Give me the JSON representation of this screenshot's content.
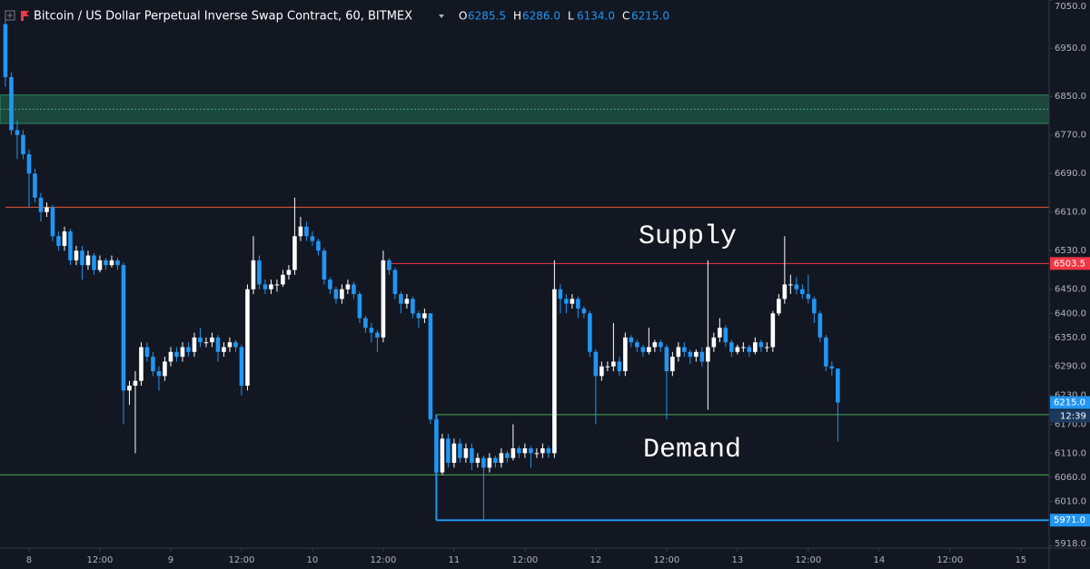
{
  "chart_data": {
    "type": "candlestick",
    "title": "Bitcoin / US Dollar Perpetual Inverse Swap Contract, 60, BITMEX",
    "ohlc_legend": [
      {
        "name": "O",
        "value": 6285.5,
        "label": "6285.5"
      },
      {
        "name": "H",
        "value": 6286.0,
        "label": "6286.0"
      },
      {
        "name": "L",
        "value": 6134.0,
        "label": "6134.0"
      },
      {
        "name": "C",
        "value": 6215.0,
        "label": "6215.0"
      }
    ],
    "up_color": "#ffffff",
    "down_color": "#2196f3",
    "x": [
      -4,
      -3,
      -2,
      -1,
      0,
      1,
      2,
      3,
      4,
      5,
      6,
      7,
      8,
      9,
      10,
      11,
      12,
      13,
      14,
      15,
      16,
      17,
      18,
      19,
      20,
      21,
      22,
      23,
      24,
      25,
      26,
      27,
      28,
      29,
      30,
      31,
      32,
      33,
      34,
      35,
      36,
      37,
      38,
      39,
      40,
      41,
      42,
      43,
      44,
      45,
      46,
      47,
      48,
      49,
      50,
      51,
      52,
      53,
      54,
      55,
      56,
      57,
      58,
      59,
      60,
      61,
      62,
      63,
      64,
      65,
      66,
      67,
      68,
      69,
      70,
      71,
      72,
      73,
      74,
      75,
      76,
      77,
      78,
      79,
      80,
      81,
      82,
      83,
      84,
      85,
      86,
      87,
      88,
      89,
      90,
      91,
      92,
      93,
      94,
      95,
      96,
      97,
      98,
      99,
      100,
      101,
      102,
      103,
      104,
      105,
      106,
      107,
      108,
      109,
      110,
      111,
      112,
      113,
      114,
      115,
      116,
      117,
      118,
      119,
      120,
      121,
      122,
      123,
      124,
      125,
      126,
      127,
      128,
      129,
      130,
      131,
      132,
      133,
      134,
      135,
      136,
      137
    ],
    "open": [
      7000,
      6890,
      6780,
      6770,
      6730,
      6690,
      6640,
      6610,
      6620,
      6560,
      6540,
      6570,
      6510,
      6530,
      6500,
      6520,
      6490,
      6510,
      6500,
      6510,
      6500,
      6240,
      6250,
      6260,
      6330,
      6310,
      6280,
      6270,
      6300,
      6320,
      6310,
      6330,
      6320,
      6350,
      6340,
      6340,
      6350,
      6320,
      6330,
      6340,
      6330,
      6250,
      6450,
      6510,
      6460,
      6450,
      6460,
      6460,
      6480,
      6490,
      6560,
      6580,
      6560,
      6550,
      6530,
      6470,
      6450,
      6430,
      6450,
      6460,
      6440,
      6390,
      6370,
      6360,
      6350,
      6510,
      6490,
      6440,
      6420,
      6430,
      6400,
      6390,
      6400,
      6180,
      6070,
      6140,
      6090,
      6130,
      6100,
      6120,
      6090,
      6100,
      6080,
      6100,
      6090,
      6110,
      6100,
      6120,
      6110,
      6120,
      6110,
      6110,
      6120,
      6110,
      6450,
      6430,
      6420,
      6430,
      6410,
      6400,
      6320,
      6270,
      6290,
      6290,
      6300,
      6280,
      6350,
      6340,
      6330,
      6320,
      6330,
      6340,
      6330,
      6280,
      6310,
      6330,
      6320,
      6310,
      6320,
      6300,
      6330,
      6350,
      6370,
      6340,
      6320,
      6330,
      6330,
      6320,
      6340,
      6330,
      6330,
      6400,
      6430,
      6460,
      6460,
      6450,
      6440,
      6430,
      6400,
      6350,
      6290,
      6285.5
    ],
    "high": [
      7020,
      6900,
      6800,
      6780,
      6740,
      6700,
      6650,
      6630,
      6625,
      6570,
      6580,
      6575,
      6540,
      6540,
      6530,
      6525,
      6520,
      6515,
      6520,
      6515,
      6505,
      6260,
      6280,
      6340,
      6340,
      6320,
      6290,
      6310,
      6330,
      6330,
      6340,
      6340,
      6360,
      6370,
      6350,
      6360,
      6355,
      6340,
      6350,
      6345,
      6335,
      6460,
      6560,
      6520,
      6470,
      6470,
      6470,
      6490,
      6500,
      6640,
      6600,
      6590,
      6570,
      6555,
      6535,
      6475,
      6455,
      6460,
      6470,
      6465,
      6445,
      6395,
      6380,
      6365,
      6530,
      6515,
      6495,
      6445,
      6440,
      6435,
      6405,
      6410,
      6400,
      6190,
      6150,
      6150,
      6140,
      6140,
      6130,
      6130,
      6110,
      6105,
      6110,
      6105,
      6120,
      6115,
      6170,
      6125,
      6130,
      6125,
      6120,
      6130,
      6125,
      6510,
      6460,
      6440,
      6440,
      6435,
      6415,
      6405,
      6325,
      6300,
      6300,
      6380,
      6310,
      6360,
      6355,
      6345,
      6335,
      6370,
      6345,
      6345,
      6335,
      6320,
      6340,
      6340,
      6325,
      6325,
      6330,
      6510,
      6360,
      6390,
      6375,
      6345,
      6335,
      6340,
      6335,
      6350,
      6345,
      6340,
      6405,
      6440,
      6560,
      6480,
      6475,
      6460,
      6480,
      6435,
      6405,
      6355,
      6300,
      6286
    ],
    "low": [
      6870,
      6770,
      6720,
      6720,
      6620,
      6630,
      6590,
      6600,
      6550,
      6530,
      6530,
      6500,
      6500,
      6470,
      6490,
      6480,
      6485,
      6490,
      6495,
      6490,
      6170,
      6210,
      6110,
      6250,
      6300,
      6270,
      6240,
      6260,
      6290,
      6300,
      6300,
      6310,
      6310,
      6330,
      6330,
      6330,
      6300,
      6310,
      6320,
      6320,
      6230,
      6240,
      6440,
      6450,
      6440,
      6440,
      6445,
      6455,
      6470,
      6480,
      6550,
      6550,
      6540,
      6520,
      6460,
      6440,
      6420,
      6420,
      6440,
      6430,
      6380,
      6360,
      6340,
      6320,
      6340,
      6480,
      6430,
      6400,
      6410,
      6390,
      6370,
      6380,
      6170,
      6060,
      6065,
      6080,
      6080,
      6090,
      6090,
      6075,
      6080,
      5971,
      6070,
      6080,
      6080,
      6090,
      6095,
      6100,
      6100,
      6080,
      6100,
      6100,
      6100,
      6100,
      6400,
      6400,
      6410,
      6390,
      6390,
      6310,
      6170,
      6260,
      6280,
      6280,
      6270,
      6270,
      6330,
      6320,
      6310,
      6315,
      6320,
      6320,
      6180,
      6270,
      6300,
      6310,
      6295,
      6300,
      6290,
      6200,
      6320,
      6340,
      6330,
      6310,
      6315,
      6320,
      6310,
      6315,
      6320,
      6320,
      6320,
      6395,
      6420,
      6440,
      6440,
      6430,
      6420,
      6380,
      6340,
      6280,
      6270,
      6134
    ],
    "close": [
      6890,
      6780,
      6770,
      6730,
      6690,
      6640,
      6610,
      6620,
      6560,
      6540,
      6570,
      6510,
      6530,
      6500,
      6520,
      6490,
      6510,
      6500,
      6510,
      6500,
      6240,
      6250,
      6260,
      6330,
      6310,
      6280,
      6270,
      6300,
      6320,
      6310,
      6330,
      6320,
      6350,
      6340,
      6340,
      6350,
      6320,
      6330,
      6340,
      6330,
      6250,
      6450,
      6510,
      6460,
      6450,
      6460,
      6460,
      6480,
      6490,
      6560,
      6580,
      6560,
      6550,
      6530,
      6470,
      6450,
      6430,
      6450,
      6460,
      6440,
      6390,
      6370,
      6360,
      6350,
      6510,
      6490,
      6440,
      6420,
      6430,
      6400,
      6390,
      6400,
      6180,
      6070,
      6140,
      6090,
      6130,
      6100,
      6120,
      6090,
      6100,
      6080,
      6100,
      6090,
      6110,
      6100,
      6120,
      6110,
      6120,
      6110,
      6110,
      6120,
      6110,
      6450,
      6430,
      6420,
      6430,
      6410,
      6400,
      6320,
      6270,
      6290,
      6290,
      6300,
      6280,
      6350,
      6340,
      6330,
      6320,
      6330,
      6340,
      6330,
      6280,
      6310,
      6330,
      6320,
      6310,
      6320,
      6300,
      6330,
      6350,
      6370,
      6340,
      6320,
      6330,
      6330,
      6320,
      6340,
      6330,
      6330,
      6400,
      6430,
      6460,
      6460,
      6450,
      6440,
      6430,
      6400,
      6350,
      6290,
      6285.5,
      6215
    ],
    "xlim": [
      -4.92,
      172.8
    ],
    "ylim": [
      5913,
      7050
    ],
    "xticks": [
      {
        "value": 0,
        "label": "8"
      },
      {
        "value": 12,
        "label": "12:00"
      },
      {
        "value": 24,
        "label": "9"
      },
      {
        "value": 36,
        "label": "12:00"
      },
      {
        "value": 48,
        "label": "10"
      },
      {
        "value": 60,
        "label": "12:00"
      },
      {
        "value": 72,
        "label": "11"
      },
      {
        "value": 84,
        "label": "12:00"
      },
      {
        "value": 96,
        "label": "12"
      },
      {
        "value": 108,
        "label": "12:00"
      },
      {
        "value": 120,
        "label": "13"
      },
      {
        "value": 132,
        "label": "12:00"
      },
      {
        "value": 144,
        "label": "14"
      },
      {
        "value": 156,
        "label": "12:00"
      },
      {
        "value": 168,
        "label": "15"
      }
    ],
    "yticks": [
      {
        "value": 7050,
        "label": "7050.0"
      },
      {
        "value": 6950,
        "label": "6950.0"
      },
      {
        "value": 6850,
        "label": "6850.0"
      },
      {
        "value": 6770,
        "label": "6770.0"
      },
      {
        "value": 6690,
        "label": "6690.0"
      },
      {
        "value": 6610,
        "label": "6610.0"
      },
      {
        "value": 6530,
        "label": "6530.0"
      },
      {
        "value": 6450,
        "label": "6450.0"
      },
      {
        "value": 6400,
        "label": "6400.0"
      },
      {
        "value": 6350,
        "label": "6350.0"
      },
      {
        "value": 6290,
        "label": "6290.0"
      },
      {
        "value": 6230,
        "label": "6230.0"
      },
      {
        "value": 6170,
        "label": "6170.0"
      },
      {
        "value": 6110,
        "label": "6110.0"
      },
      {
        "value": 6060,
        "label": "6060.0"
      },
      {
        "value": 6010,
        "label": "6010.0"
      },
      {
        "value": 5918,
        "label": "5918.0"
      }
    ],
    "zones": [
      {
        "from": 6794,
        "to": 6853,
        "color": "#1f5a43"
      }
    ],
    "hlines": [
      {
        "value": 6620,
        "x_start": -4,
        "color": "#e4572e"
      },
      {
        "value": 6503.5,
        "x_start": 61,
        "color": "#f23645"
      },
      {
        "value": 6190,
        "x_start": 69,
        "color": "#4caf50"
      },
      {
        "value": 6065,
        "x_start": -4.92,
        "color": "#4caf50"
      },
      {
        "value": 5971,
        "x_start": 69,
        "color": "#2196f3"
      }
    ],
    "vlines": [
      {
        "x": 69,
        "from": 5971,
        "to": 6190,
        "color": "#2196f3"
      }
    ],
    "price_labels": [
      {
        "value": 6503.5,
        "label": "6503.5",
        "color": "#f23645"
      },
      {
        "value": 6215,
        "label": "6215.0",
        "color": "#2196f3"
      },
      {
        "value": 5971,
        "label": "5971.0",
        "color": "#2196f3"
      }
    ],
    "countdown": "12:39",
    "annotations": [
      "Supply",
      "Demand"
    ]
  }
}
